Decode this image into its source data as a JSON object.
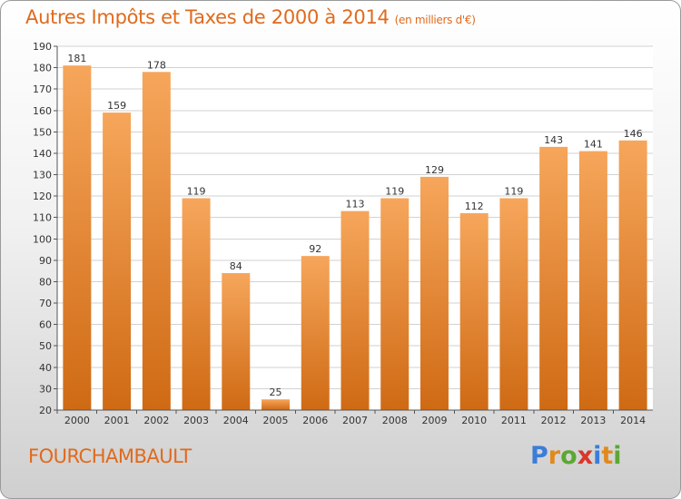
{
  "chart_data": {
    "type": "bar",
    "title": "Autres Impôts et Taxes de 2000 à 2014",
    "subtitle": "(en milliers d'€)",
    "categories": [
      "2000",
      "2001",
      "2002",
      "2003",
      "2004",
      "2005",
      "2006",
      "2007",
      "2008",
      "2009",
      "2010",
      "2011",
      "2012",
      "2013",
      "2014"
    ],
    "values": [
      181,
      159,
      178,
      119,
      84,
      25,
      92,
      113,
      119,
      129,
      112,
      119,
      143,
      141,
      146
    ],
    "ylim": [
      20,
      190
    ],
    "yticks": [
      20,
      30,
      40,
      50,
      60,
      70,
      80,
      90,
      100,
      110,
      120,
      130,
      140,
      150,
      160,
      170,
      180,
      190
    ],
    "grid": true,
    "xlabel": "",
    "ylabel": ""
  },
  "colors": {
    "bar_light": "#f6a65b",
    "bar_dark": "#cf6a14",
    "title": "#e06a1d",
    "grid": "#d2d2d2"
  },
  "footer": {
    "place": "FOURCHAMBAULT",
    "logo_letters": [
      "P",
      "r",
      "o",
      "x",
      "i",
      "t",
      "i"
    ],
    "logo_colors": [
      "#3b7dd8",
      "#e08a1e",
      "#5aa832",
      "#d8372a",
      "#3b7dd8",
      "#e08a1e",
      "#5aa832"
    ]
  }
}
